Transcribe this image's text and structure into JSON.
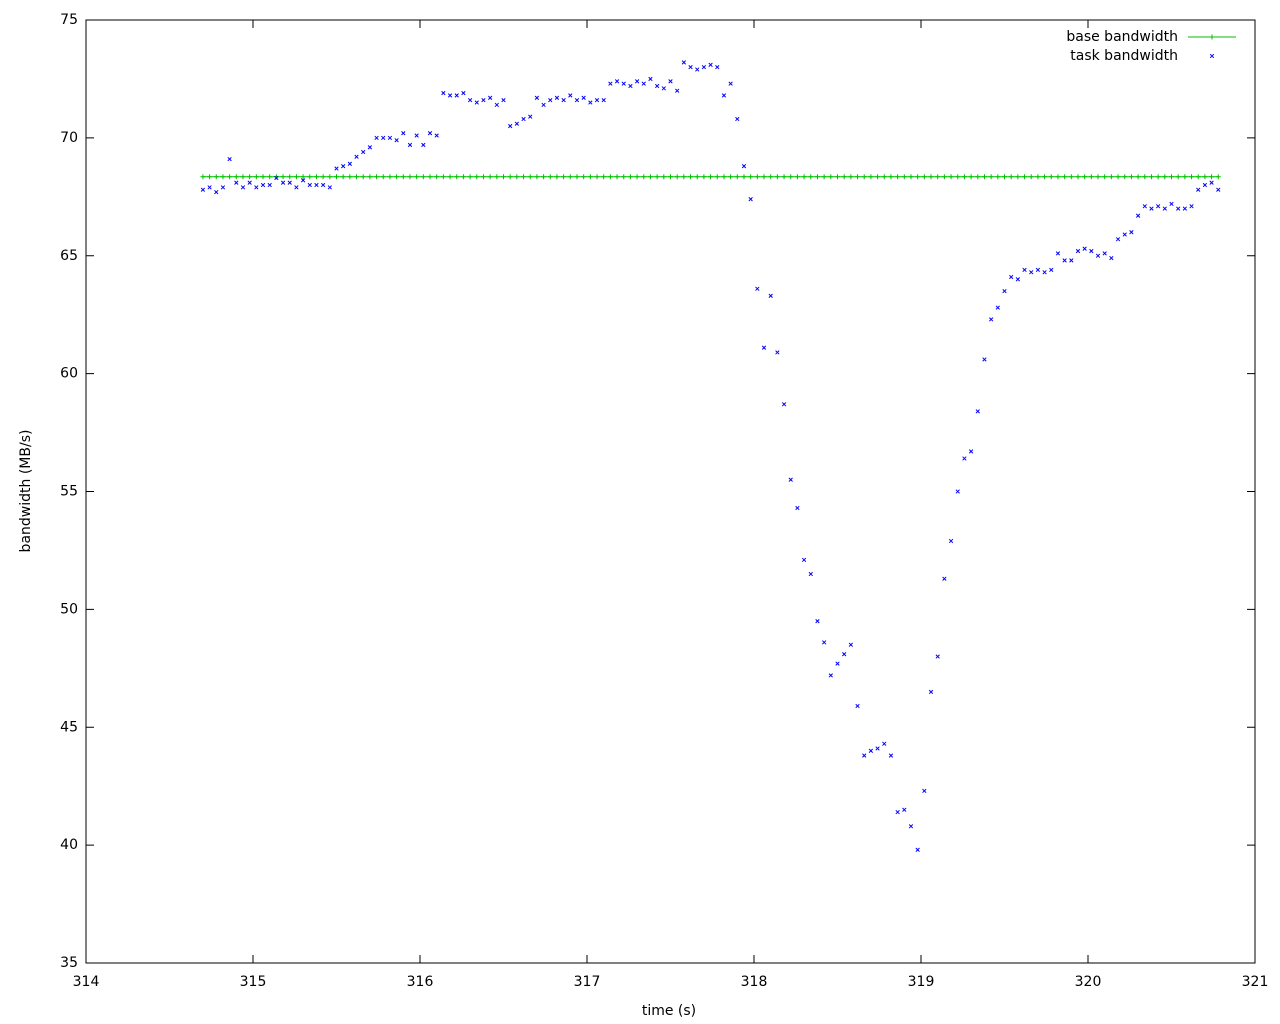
{
  "chart_data": {
    "type": "scatter",
    "xlabel": "time (s)",
    "ylabel": "bandwidth (MB/s)",
    "xlim": [
      314,
      321
    ],
    "xticks": [
      314,
      315,
      316,
      317,
      318,
      319,
      320,
      321
    ],
    "ylim": [
      35,
      75
    ],
    "yticks": [
      35,
      40,
      45,
      50,
      55,
      60,
      65,
      70,
      75
    ],
    "legend": "top-right",
    "x": [
      314.7,
      314.74,
      314.78,
      314.82,
      314.86,
      314.9,
      314.94,
      314.98,
      315.02,
      315.06,
      315.1,
      315.14,
      315.18,
      315.22,
      315.26,
      315.3,
      315.34,
      315.38,
      315.42,
      315.46,
      315.5,
      315.54,
      315.58,
      315.62,
      315.66,
      315.7,
      315.74,
      315.78,
      315.82,
      315.86,
      315.9,
      315.94,
      315.98,
      316.02,
      316.06,
      316.1,
      316.14,
      316.18,
      316.22,
      316.26,
      316.3,
      316.34,
      316.38,
      316.42,
      316.46,
      316.5,
      316.54,
      316.58,
      316.62,
      316.66,
      316.7,
      316.74,
      316.78,
      316.82,
      316.86,
      316.9,
      316.94,
      316.98,
      317.02,
      317.06,
      317.1,
      317.14,
      317.18,
      317.22,
      317.26,
      317.3,
      317.34,
      317.38,
      317.42,
      317.46,
      317.5,
      317.54,
      317.58,
      317.62,
      317.66,
      317.7,
      317.74,
      317.78,
      317.82,
      317.86,
      317.9,
      317.94,
      317.98,
      318.02,
      318.06,
      318.1,
      318.14,
      318.18,
      318.22,
      318.26,
      318.3,
      318.34,
      318.38,
      318.42,
      318.46,
      318.5,
      318.54,
      318.58,
      318.62,
      318.66,
      318.7,
      318.74,
      318.78,
      318.82,
      318.86,
      318.9,
      318.94,
      318.98,
      319.02,
      319.06,
      319.1,
      319.14,
      319.18,
      319.22,
      319.26,
      319.3,
      319.34,
      319.38,
      319.42,
      319.46,
      319.5,
      319.54,
      319.58,
      319.62,
      319.66,
      319.7,
      319.74,
      319.78,
      319.82,
      319.86,
      319.9,
      319.94,
      319.98,
      320.02,
      320.06,
      320.1,
      320.14,
      320.18,
      320.22,
      320.26,
      320.3,
      320.34,
      320.38,
      320.42,
      320.46,
      320.5,
      320.54,
      320.58,
      320.62,
      320.66,
      320.7,
      320.74,
      320.78
    ],
    "series": [
      {
        "name": "base bandwidth",
        "color": "#00c000",
        "style": "linespoints",
        "values": [
          68.35,
          68.35,
          68.35,
          68.35,
          68.35,
          68.35,
          68.35,
          68.35,
          68.35,
          68.35,
          68.35,
          68.35,
          68.35,
          68.35,
          68.35,
          68.35,
          68.35,
          68.35,
          68.35,
          68.35,
          68.35,
          68.35,
          68.35,
          68.35,
          68.35,
          68.35,
          68.35,
          68.35,
          68.35,
          68.35,
          68.35,
          68.35,
          68.35,
          68.35,
          68.35,
          68.35,
          68.35,
          68.35,
          68.35,
          68.35,
          68.35,
          68.35,
          68.35,
          68.35,
          68.35,
          68.35,
          68.35,
          68.35,
          68.35,
          68.35,
          68.35,
          68.35,
          68.35,
          68.35,
          68.35,
          68.35,
          68.35,
          68.35,
          68.35,
          68.35,
          68.35,
          68.35,
          68.35,
          68.35,
          68.35,
          68.35,
          68.35,
          68.35,
          68.35,
          68.35,
          68.35,
          68.35,
          68.35,
          68.35,
          68.35,
          68.35,
          68.35,
          68.35,
          68.35,
          68.35,
          68.35,
          68.35,
          68.35,
          68.35,
          68.35,
          68.35,
          68.35,
          68.35,
          68.35,
          68.35,
          68.35,
          68.35,
          68.35,
          68.35,
          68.35,
          68.35,
          68.35,
          68.35,
          68.35,
          68.35,
          68.35,
          68.35,
          68.35,
          68.35,
          68.35,
          68.35,
          68.35,
          68.35,
          68.35,
          68.35,
          68.35,
          68.35,
          68.35,
          68.35,
          68.35,
          68.35,
          68.35,
          68.35,
          68.35,
          68.35,
          68.35,
          68.35,
          68.35,
          68.35,
          68.35,
          68.35,
          68.35,
          68.35,
          68.35,
          68.35,
          68.35,
          68.35,
          68.35,
          68.35,
          68.35,
          68.35,
          68.35,
          68.35,
          68.35,
          68.35,
          68.35,
          68.35,
          68.35,
          68.35,
          68.35,
          68.35,
          68.35,
          68.35,
          68.35,
          68.35,
          68.35,
          68.35,
          68.35
        ]
      },
      {
        "name": "task bandwidth",
        "color": "#0000ff",
        "style": "points",
        "values": [
          67.8,
          67.9,
          67.7,
          67.9,
          69.1,
          68.1,
          67.9,
          68.1,
          67.9,
          68.0,
          68.0,
          68.3,
          68.1,
          68.1,
          67.9,
          68.2,
          68.0,
          68.0,
          68.0,
          67.9,
          68.7,
          68.8,
          68.9,
          69.2,
          69.4,
          69.6,
          70.0,
          70.0,
          70.0,
          69.9,
          70.2,
          69.7,
          70.1,
          69.7,
          70.2,
          70.1,
          71.9,
          71.8,
          71.8,
          71.9,
          71.6,
          71.5,
          71.6,
          71.7,
          71.4,
          71.6,
          70.5,
          70.6,
          70.8,
          70.9,
          71.7,
          71.4,
          71.6,
          71.7,
          71.6,
          71.8,
          71.6,
          71.7,
          71.5,
          71.6,
          71.6,
          72.3,
          72.4,
          72.3,
          72.2,
          72.4,
          72.3,
          72.5,
          72.2,
          72.1,
          72.4,
          72.0,
          73.2,
          73.0,
          72.9,
          73.0,
          73.1,
          73.0,
          71.8,
          72.3,
          70.8,
          68.8,
          67.4,
          63.6,
          61.1,
          63.3,
          60.9,
          58.7,
          55.5,
          54.3,
          52.1,
          51.5,
          49.5,
          48.6,
          47.2,
          47.7,
          48.1,
          48.5,
          45.9,
          43.8,
          44.0,
          44.1,
          44.3,
          43.8,
          41.4,
          41.5,
          40.8,
          39.8,
          42.3,
          46.5,
          48.0,
          51.3,
          52.9,
          55.0,
          56.4,
          56.7,
          58.4,
          60.6,
          62.3,
          62.8,
          63.5,
          64.1,
          64.0,
          64.4,
          64.3,
          64.4,
          64.3,
          64.4,
          65.1,
          64.8,
          64.8,
          65.2,
          65.3,
          65.2,
          65.0,
          65.1,
          64.9,
          65.7,
          65.9,
          66.0,
          66.7,
          67.1,
          67.0,
          67.1,
          67.0,
          67.2,
          67.0,
          67.0,
          67.1,
          67.8,
          68.0,
          68.1,
          67.8
        ]
      }
    ]
  }
}
